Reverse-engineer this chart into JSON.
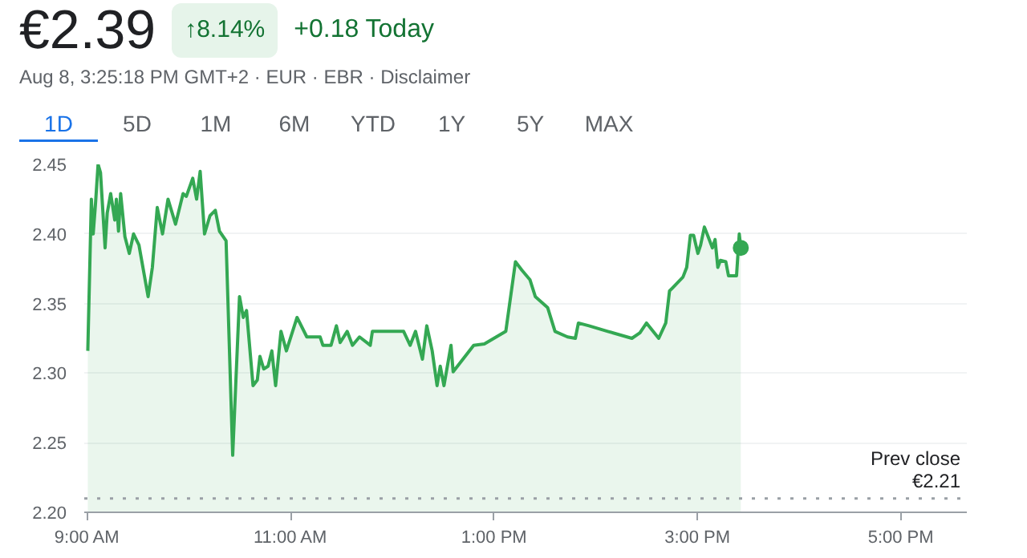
{
  "chart_data": {
    "type": "area",
    "title": "€2.39",
    "subtitle": "Aug 8, 3:25:18 PM GMT+2 · EUR · EBR · Disclaimer",
    "annotations": [
      "↑8.14%",
      "+0.18 Today",
      "1D",
      "5D",
      "1M",
      "6M",
      "YTD",
      "1Y",
      "5Y",
      "MAX"
    ],
    "series": [
      {
        "color": "#34a853",
        "x": [
          9.005,
          9.04,
          9.058,
          9.08,
          9.106,
          9.13,
          9.175,
          9.196,
          9.23,
          9.27,
          9.286,
          9.307,
          9.328,
          9.37,
          9.413,
          9.455,
          9.508,
          9.598,
          9.64,
          9.688,
          9.74,
          9.794,
          9.868,
          9.942,
          9.974,
          10.037,
          10.075,
          10.11,
          10.153,
          10.206,
          10.259,
          10.3,
          10.365,
          10.43,
          10.497,
          10.534,
          10.566,
          10.63,
          10.672,
          10.698,
          10.735,
          10.778,
          10.815,
          10.852,
          10.905,
          10.958,
          11.063,
          11.159,
          11.29,
          11.317,
          11.397,
          11.45,
          11.487,
          11.556,
          11.608,
          11.677,
          11.783,
          11.804,
          12.111,
          12.175,
          12.228,
          12.296,
          12.339,
          12.392,
          12.44,
          12.471,
          12.508,
          12.577,
          12.598,
          12.8,
          12.905,
          13.116,
          13.211,
          13.274,
          13.354,
          13.406,
          13.528,
          13.6,
          13.723,
          13.8,
          13.83,
          13.934,
          14.119,
          14.356,
          14.435,
          14.5,
          14.62,
          14.689,
          14.726,
          14.752,
          14.858,
          14.895,
          14.931,
          14.963,
          15.005,
          15.032,
          15.069,
          15.106,
          15.148,
          15.174,
          15.201,
          15.227,
          15.28,
          15.306,
          15.385,
          15.412,
          15.427
        ],
        "values": [
          2.316,
          2.425,
          2.4,
          2.421,
          2.45,
          2.444,
          2.39,
          2.415,
          2.429,
          2.41,
          2.425,
          2.402,
          2.429,
          2.398,
          2.386,
          2.4,
          2.392,
          2.355,
          2.376,
          2.419,
          2.4,
          2.425,
          2.407,
          2.429,
          2.427,
          2.44,
          2.425,
          2.445,
          2.4,
          2.413,
          2.417,
          2.402,
          2.395,
          2.241,
          2.355,
          2.34,
          2.345,
          2.291,
          2.295,
          2.312,
          2.303,
          2.305,
          2.316,
          2.291,
          2.33,
          2.316,
          2.34,
          2.326,
          2.326,
          2.32,
          2.32,
          2.334,
          2.322,
          2.33,
          2.32,
          2.326,
          2.32,
          2.33,
          2.33,
          2.32,
          2.33,
          2.31,
          2.334,
          2.316,
          2.291,
          2.305,
          2.291,
          2.32,
          2.301,
          2.32,
          2.321,
          2.33,
          2.38,
          2.374,
          2.367,
          2.355,
          2.347,
          2.33,
          2.326,
          2.325,
          2.336,
          2.334,
          2.33,
          2.325,
          2.329,
          2.336,
          2.325,
          2.336,
          2.359,
          2.361,
          2.369,
          2.376,
          2.399,
          2.399,
          2.386,
          2.392,
          2.405,
          2.398,
          2.39,
          2.396,
          2.376,
          2.381,
          2.38,
          2.37,
          2.37,
          2.4,
          2.39
        ]
      },
      {
        "type": "scatter",
        "color": "#34a853",
        "marker": "circle",
        "x": [
          15.427
        ],
        "values": [
          2.39
        ]
      }
    ],
    "xlim": [
      8.97,
      17.65
    ],
    "ylim": [
      2.2,
      2.45
    ],
    "xticks": [
      {
        "value": 9,
        "label": "9:00 AM"
      },
      {
        "value": 11,
        "label": "11:00 AM"
      },
      {
        "value": 13,
        "label": "1:00 PM"
      },
      {
        "value": 15,
        "label": "3:00 PM"
      },
      {
        "value": 17,
        "label": "5:00 PM"
      }
    ],
    "yticks": [
      {
        "value": 2.2,
        "label": "2.20"
      },
      2.25,
      {
        "value": 2.3,
        "label": "2.30"
      },
      2.35,
      {
        "value": 2.4,
        "label": "2.40"
      },
      2.45
    ],
    "grid": "y",
    "ref_lines": [
      {
        "axis": "y",
        "value": 2.21,
        "label": "Prev close\n€2.21",
        "color": "#9aa0a6",
        "line_style": "dotted"
      }
    ]
  }
}
